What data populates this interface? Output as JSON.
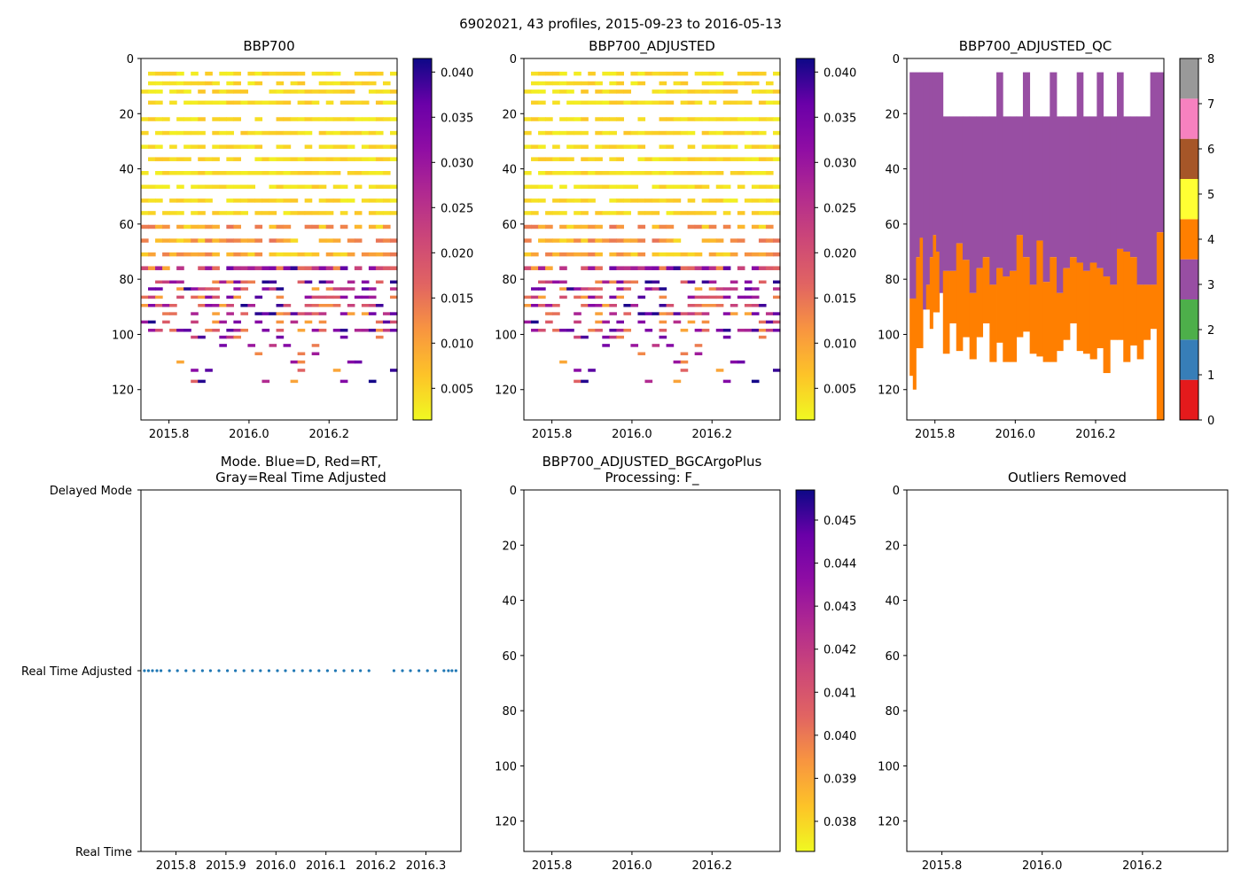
{
  "suptitle": "6902021, 43 profiles, 2015-09-23 to 2016-05-13",
  "chart_data": [
    {
      "id": "bbp700",
      "type": "heatmap",
      "title": "BBP700",
      "x_ticks": [
        "2015.8",
        "2016.0",
        "2016.2"
      ],
      "x_tick_values": [
        2015.8,
        2016.0,
        2016.2
      ],
      "y_ticks": [
        "0",
        "20",
        "40",
        "60",
        "80",
        "100",
        "120"
      ],
      "y_tick_values": [
        0,
        20,
        40,
        60,
        80,
        100,
        120
      ],
      "xlim": [
        2015.73,
        2016.37
      ],
      "ylim": [
        131,
        0
      ],
      "colormap": "plasma_r",
      "colorbar": {
        "range": [
          0.0015,
          0.0415
        ],
        "ticks": [
          "0.005",
          "0.010",
          "0.015",
          "0.020",
          "0.025",
          "0.030",
          "0.035",
          "0.040"
        ],
        "tick_values": [
          0.005,
          0.01,
          0.015,
          0.02,
          0.025,
          0.03,
          0.035,
          0.04
        ]
      }
    },
    {
      "id": "bbp700-adjusted",
      "type": "heatmap",
      "title": "BBP700_ADJUSTED",
      "x_ticks": [
        "2015.8",
        "2016.0",
        "2016.2"
      ],
      "x_tick_values": [
        2015.8,
        2016.0,
        2016.2
      ],
      "y_ticks": [
        "0",
        "20",
        "40",
        "60",
        "80",
        "100",
        "120"
      ],
      "y_tick_values": [
        0,
        20,
        40,
        60,
        80,
        100,
        120
      ],
      "xlim": [
        2015.73,
        2016.37
      ],
      "ylim": [
        131,
        0
      ],
      "colormap": "plasma_r",
      "colorbar": {
        "range": [
          0.0015,
          0.0415
        ],
        "ticks": [
          "0.005",
          "0.010",
          "0.015",
          "0.020",
          "0.025",
          "0.030",
          "0.035",
          "0.040"
        ],
        "tick_values": [
          0.005,
          0.01,
          0.015,
          0.02,
          0.025,
          0.03,
          0.035,
          0.04
        ]
      }
    },
    {
      "id": "bbp700-adjusted-qc",
      "type": "heatmap",
      "title": "BBP700_ADJUSTED_QC",
      "x_ticks": [
        "2015.8",
        "2016.0",
        "2016.2"
      ],
      "x_tick_values": [
        2015.8,
        2016.0,
        2016.2
      ],
      "y_ticks": [
        "0",
        "20",
        "40",
        "60",
        "80",
        "100",
        "120"
      ],
      "y_tick_values": [
        0,
        20,
        40,
        60,
        80,
        100,
        120
      ],
      "xlim": [
        2015.73,
        2016.37
      ],
      "ylim": [
        131,
        0
      ],
      "qc_colors": [
        "#e41a1c",
        "#377eb8",
        "#4daf4a",
        "#984ea3",
        "#ff7f00",
        "#ffff33",
        "#a65628",
        "#f781bf",
        "#999999"
      ],
      "colorbar": {
        "range": [
          0,
          8
        ],
        "ticks": [
          "0",
          "1",
          "2",
          "3",
          "4",
          "5",
          "6",
          "7",
          "8"
        ],
        "tick_values": [
          0,
          1,
          2,
          3,
          4,
          5,
          6,
          7,
          8
        ]
      },
      "qc_profiles": {
        "x": [
          2015.737,
          2015.745,
          2015.753,
          2015.762,
          2015.77,
          2015.778,
          2015.787,
          2015.795,
          2015.803,
          2015.811,
          2015.82,
          2015.836,
          2015.853,
          2015.869,
          2015.886,
          2015.903,
          2015.919,
          2015.936,
          2015.953,
          2015.969,
          2015.986,
          2016.003,
          2016.019,
          2016.036,
          2016.053,
          2016.069,
          2016.086,
          2016.103,
          2016.119,
          2016.136,
          2016.153,
          2016.169,
          2016.186,
          2016.203,
          2016.219,
          2016.236,
          2016.253,
          2016.269,
          2016.286,
          2016.303,
          2016.319,
          2016.336,
          2016.352
        ],
        "top_depth": [
          5,
          5,
          5,
          5,
          5,
          5,
          5,
          5,
          5,
          5,
          21,
          21,
          21,
          21,
          21,
          21,
          21,
          21,
          5,
          21,
          21,
          21,
          5,
          21,
          21,
          21,
          5,
          21,
          21,
          21,
          5,
          21,
          21,
          5,
          21,
          21,
          5,
          21,
          21,
          21,
          21,
          5,
          5
        ],
        "qc3_bottom": [
          87,
          87,
          72,
          65,
          91,
          82,
          72,
          64,
          70,
          85,
          77,
          77,
          67,
          73,
          85,
          76,
          72,
          82,
          76,
          79,
          77,
          64,
          72,
          82,
          66,
          81,
          72,
          85,
          76,
          72,
          74,
          77,
          74,
          76,
          79,
          82,
          69,
          70,
          72,
          82,
          82,
          82,
          63
        ],
        "bottom_depth": [
          115,
          120,
          105,
          105,
          84,
          91,
          98,
          92,
          92,
          82,
          107,
          96,
          106,
          101,
          109,
          101,
          96,
          110,
          103,
          110,
          110,
          101,
          99,
          107,
          108,
          110,
          110,
          106,
          102,
          96,
          106,
          107,
          109,
          105,
          114,
          102,
          102,
          110,
          104,
          109,
          102,
          98,
          131
        ]
      }
    },
    {
      "id": "mode",
      "type": "scatter",
      "title_lines": [
        "Mode. Blue=D, Red=RT,",
        "Gray=Real Time Adjusted"
      ],
      "x_ticks": [
        "2015.8",
        "2015.9",
        "2016.0",
        "2016.1",
        "2016.2",
        "2016.3"
      ],
      "x_tick_values": [
        2015.8,
        2015.9,
        2016.0,
        2016.1,
        2016.2,
        2016.3
      ],
      "xlim": [
        2015.73,
        2016.37
      ],
      "y_labels": [
        "Delayed Mode",
        "Real Time Adjusted",
        "Real Time"
      ],
      "y_values": [
        2,
        1,
        0
      ],
      "ylim": [
        0,
        2
      ],
      "points": {
        "x": [
          2015.737,
          2015.745,
          2015.753,
          2015.762,
          2015.77,
          2015.787,
          2015.803,
          2015.82,
          2015.836,
          2015.853,
          2015.869,
          2015.886,
          2015.903,
          2015.919,
          2015.936,
          2015.953,
          2015.969,
          2015.986,
          2016.003,
          2016.019,
          2016.036,
          2016.053,
          2016.069,
          2016.086,
          2016.103,
          2016.119,
          2016.136,
          2016.153,
          2016.169,
          2016.186,
          2016.236,
          2016.253,
          2016.269,
          2016.286,
          2016.303,
          2016.319,
          2016.336,
          2016.345,
          2016.352,
          2016.36
        ],
        "y": 1,
        "color": "#1f77b4"
      }
    },
    {
      "id": "bgc-argo-plus",
      "type": "heatmap",
      "title_lines": [
        "BBP700_ADJUSTED_BGCArgoPlus",
        "Processing: F_"
      ],
      "x_ticks": [
        "2015.8",
        "2016.0",
        "2016.2"
      ],
      "x_tick_values": [
        2015.8,
        2016.0,
        2016.2
      ],
      "y_ticks": [
        "0",
        "20",
        "40",
        "60",
        "80",
        "100",
        "120"
      ],
      "y_tick_values": [
        0,
        20,
        40,
        60,
        80,
        100,
        120
      ],
      "xlim": [
        2015.73,
        2016.37
      ],
      "ylim": [
        131,
        0
      ],
      "colormap": "plasma_r",
      "colorbar": {
        "range": [
          0.0373,
          0.0457
        ],
        "ticks": [
          "0.038",
          "0.039",
          "0.040",
          "0.041",
          "0.042",
          "0.043",
          "0.044",
          "0.045"
        ],
        "tick_values": [
          0.038,
          0.039,
          0.04,
          0.041,
          0.042,
          0.043,
          0.044,
          0.045
        ]
      }
    },
    {
      "id": "outliers-removed",
      "type": "heatmap",
      "title": "Outliers Removed",
      "x_ticks": [
        "2015.8",
        "2016.0",
        "2016.2"
      ],
      "x_tick_values": [
        2015.8,
        2016.0,
        2016.2
      ],
      "y_ticks": [
        "0",
        "20",
        "40",
        "60",
        "80",
        "100",
        "120"
      ],
      "y_tick_values": [
        0,
        20,
        40,
        60,
        80,
        100,
        120
      ],
      "xlim": [
        2015.73,
        2016.37
      ],
      "ylim": [
        131,
        0
      ]
    }
  ]
}
